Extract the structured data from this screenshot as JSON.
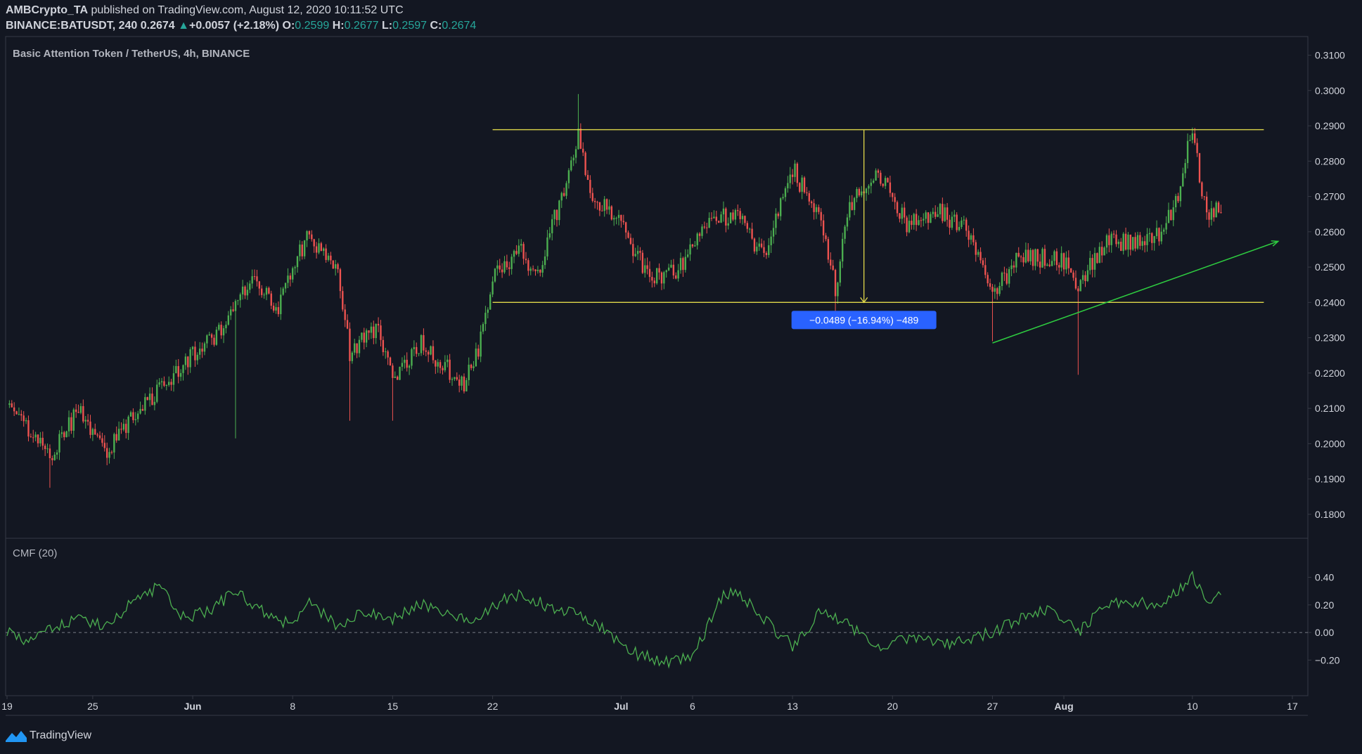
{
  "header": {
    "author": "AMBCrypto_TA",
    "published_text": " published on TradingView.com, August 12, 2020 10:11:52 UTC",
    "symbol": "BINANCE:BATUSDT, 240",
    "last_price": "0.2674",
    "change": "+0.0057 (+2.18%)",
    "o_label": "O:",
    "o_value": "0.2599",
    "h_label": "H:",
    "h_value": "0.2677",
    "l_label": "L:",
    "l_value": "0.2597",
    "c_label": "C:",
    "c_value": "0.2674"
  },
  "brand": {
    "name": "TradingView"
  },
  "colors": {
    "background": "#131722",
    "grid": "#363a45",
    "text": "#d1d4dc",
    "up": "#26a69a",
    "candle_up": "#4caf50",
    "candle_down": "#ef5350",
    "range_lines": "#e0d84a",
    "trendline": "#2ecc40",
    "cmf_line": "#4caf50",
    "measure_label": "#2962ff"
  },
  "chart_data": [
    {
      "type": "candlestick",
      "title": "Basic Attention Token / TetherUS, 4h, BINANCE",
      "ylim": [
        0.175,
        0.3115
      ],
      "y_ticks": [
        "0.3100",
        "0.3000",
        "0.2900",
        "0.2800",
        "0.2700",
        "0.2600",
        "0.2500",
        "0.2400",
        "0.2300",
        "0.2200",
        "0.2100",
        "0.2000",
        "0.1900",
        "0.1800"
      ],
      "x_ticks": [
        "19",
        "25",
        "Jun",
        "8",
        "15",
        "22",
        "Jul",
        "6",
        "13",
        "20",
        "27",
        "Aug",
        "10",
        "17"
      ],
      "x_range": [
        "May 19",
        "Aug 17"
      ],
      "approx_price_path": [
        [
          "May 19",
          0.211
        ],
        [
          "May 22",
          0.197
        ],
        [
          "May 24",
          0.209
        ],
        [
          "May 26",
          0.198
        ],
        [
          "May 29",
          0.213
        ],
        [
          "Jun 1",
          0.225
        ],
        [
          "Jun 3",
          0.232
        ],
        [
          "Jun 5",
          0.247
        ],
        [
          "Jun 7",
          0.239
        ],
        [
          "Jun 9",
          0.259
        ],
        [
          "Jun 11",
          0.251
        ],
        [
          "Jun 12",
          0.226
        ],
        [
          "Jun 14",
          0.233
        ],
        [
          "Jun 15",
          0.218
        ],
        [
          "Jun 17",
          0.228
        ],
        [
          "Jun 20",
          0.217
        ],
        [
          "Jun 21",
          0.226
        ],
        [
          "Jun 22",
          0.248
        ],
        [
          "Jun 24",
          0.255
        ],
        [
          "Jun 25",
          0.247
        ],
        [
          "Jun 27",
          0.272
        ],
        [
          "Jun 28",
          0.287
        ],
        [
          "Jun 29",
          0.27
        ],
        [
          "Jul 1",
          0.262
        ],
        [
          "Jul 3",
          0.247
        ],
        [
          "Jul 5",
          0.249
        ],
        [
          "Jul 7",
          0.263
        ],
        [
          "Jul 9",
          0.265
        ],
        [
          "Jul 11",
          0.253
        ],
        [
          "Jul 13",
          0.278
        ],
        [
          "Jul 15",
          0.262
        ],
        [
          "Jul 16",
          0.244
        ],
        [
          "Jul 17",
          0.268
        ],
        [
          "Jul 19",
          0.276
        ],
        [
          "Jul 21",
          0.262
        ],
        [
          "Jul 23",
          0.266
        ],
        [
          "Jul 25",
          0.261
        ],
        [
          "Jul 27",
          0.243
        ],
        [
          "Jul 29",
          0.253
        ],
        [
          "Aug 1",
          0.252
        ],
        [
          "Aug 2",
          0.245
        ],
        [
          "Aug 4",
          0.258
        ],
        [
          "Aug 6",
          0.256
        ],
        [
          "Aug 8",
          0.26
        ],
        [
          "Aug 9",
          0.271
        ],
        [
          "Aug 10",
          0.289
        ],
        [
          "Aug 11",
          0.263
        ],
        [
          "Aug 12",
          0.2674
        ]
      ],
      "range_top": 0.2889,
      "range_bottom": 0.24,
      "range_start": "Jun 22",
      "range_end": "Aug 15",
      "measure": {
        "date": "Jul 18",
        "from": 0.2889,
        "to": 0.24,
        "label": "−0.0489 (−16.94%) −489"
      },
      "trendline": {
        "from": [
          "Jul 27",
          0.2285
        ],
        "to": [
          "Aug 16",
          0.2573
        ]
      }
    },
    {
      "type": "line",
      "title": "CMF (20)",
      "ylim": [
        -0.29,
        0.52
      ],
      "y_ticks": [
        "0.40",
        "0.20",
        "0.00",
        "−0.20"
      ],
      "zero_line": 0.0,
      "approx_values": [
        [
          "May 19",
          0.02
        ],
        [
          "May 20",
          -0.05
        ],
        [
          "May 22",
          0.04
        ],
        [
          "May 24",
          0.1
        ],
        [
          "May 26",
          0.05
        ],
        [
          "May 28",
          0.24
        ],
        [
          "May 30",
          0.35
        ],
        [
          "May 31",
          0.1
        ],
        [
          "Jun 2",
          0.15
        ],
        [
          "Jun 4",
          0.3
        ],
        [
          "Jun 6",
          0.15
        ],
        [
          "Jun 8",
          0.05
        ],
        [
          "Jun 9",
          0.24
        ],
        [
          "Jun 11",
          0.05
        ],
        [
          "Jun 13",
          0.15
        ],
        [
          "Jun 15",
          0.1
        ],
        [
          "Jun 17",
          0.2
        ],
        [
          "Jun 19",
          0.12
        ],
        [
          "Jun 21",
          0.1
        ],
        [
          "Jun 22",
          0.2
        ],
        [
          "Jun 24",
          0.28
        ],
        [
          "Jun 26",
          0.18
        ],
        [
          "Jun 28",
          0.15
        ],
        [
          "Jun 30",
          0.0
        ],
        [
          "Jul 2",
          -0.15
        ],
        [
          "Jul 4",
          -0.22
        ],
        [
          "Jul 6",
          -0.18
        ],
        [
          "Jul 8",
          0.25
        ],
        [
          "Jul 9",
          0.3
        ],
        [
          "Jul 11",
          0.1
        ],
        [
          "Jul 13",
          -0.1
        ],
        [
          "Jul 15",
          0.15
        ],
        [
          "Jul 17",
          0.05
        ],
        [
          "Jul 19",
          -0.1
        ],
        [
          "Jul 21",
          -0.05
        ],
        [
          "Jul 24",
          -0.08
        ],
        [
          "Jul 27",
          0.0
        ],
        [
          "Jul 29",
          0.1
        ],
        [
          "Jul 31",
          0.18
        ],
        [
          "Aug 2",
          0.0
        ],
        [
          "Aug 4",
          0.2
        ],
        [
          "Aug 6",
          0.22
        ],
        [
          "Aug 8",
          0.2
        ],
        [
          "Aug 10",
          0.4
        ],
        [
          "Aug 11",
          0.25
        ],
        [
          "Aug 12",
          0.26
        ]
      ]
    }
  ]
}
